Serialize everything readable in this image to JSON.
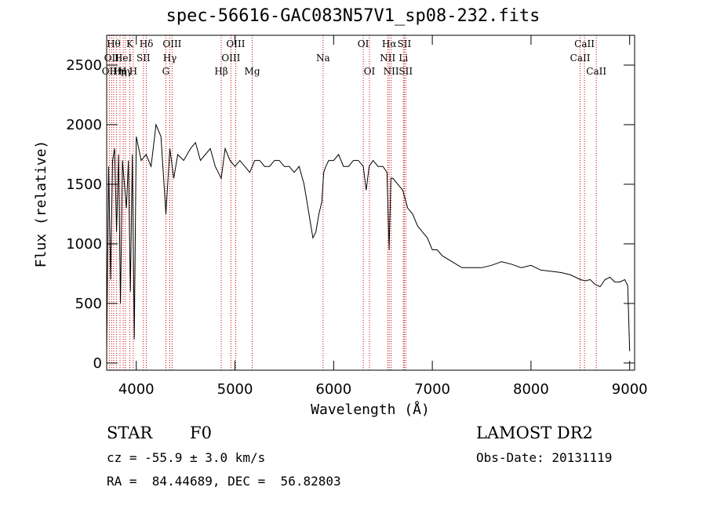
{
  "chart_data": {
    "type": "line",
    "title": "spec-56616-GAC083N57V1_sp08-232.fits",
    "xlabel": "Wavelength (Å)",
    "ylabel": "Flux (relative)",
    "xlim": [
      3700,
      9050
    ],
    "ylim": [
      -60,
      2750
    ],
    "xticks": [
      4000,
      5000,
      6000,
      7000,
      8000,
      9000
    ],
    "yticks": [
      0,
      500,
      1000,
      1500,
      2000,
      2500
    ],
    "series": [
      {
        "x": [
          3700,
          3720,
          3740,
          3760,
          3780,
          3800,
          3820,
          3840,
          3860,
          3880,
          3900,
          3920,
          3940,
          3960,
          3980,
          4000,
          4050,
          4100,
          4150,
          4200,
          4250,
          4300,
          4340,
          4380,
          4420,
          4480,
          4550,
          4600,
          4650,
          4700,
          4750,
          4800,
          4861,
          4900,
          4950,
          5000,
          5050,
          5100,
          5150,
          5200,
          5250,
          5300,
          5350,
          5400,
          5450,
          5500,
          5550,
          5600,
          5650,
          5700,
          5730,
          5760,
          5790,
          5820,
          5850,
          5880,
          5900,
          5920,
          5950,
          6000,
          6050,
          6100,
          6150,
          6200,
          6250,
          6300,
          6330,
          6360,
          6400,
          6450,
          6500,
          6540,
          6563,
          6580,
          6600,
          6650,
          6700,
          6750,
          6800,
          6850,
          6900,
          6950,
          7000,
          7050,
          7100,
          7200,
          7300,
          7400,
          7500,
          7600,
          7700,
          7800,
          7900,
          8000,
          8100,
          8200,
          8300,
          8400,
          8500,
          8550,
          8600,
          8650,
          8700,
          8750,
          8800,
          8850,
          8900,
          8950,
          8980,
          9000
        ],
        "y": [
          100,
          1650,
          700,
          1700,
          1800,
          1100,
          1750,
          500,
          1700,
          1500,
          1300,
          1700,
          600,
          1750,
          200,
          1900,
          1700,
          1750,
          1650,
          2000,
          1900,
          1250,
          1800,
          1550,
          1750,
          1700,
          1800,
          1850,
          1700,
          1750,
          1800,
          1650,
          1550,
          1800,
          1700,
          1650,
          1700,
          1650,
          1600,
          1700,
          1700,
          1650,
          1650,
          1700,
          1700,
          1650,
          1650,
          1600,
          1650,
          1500,
          1350,
          1200,
          1050,
          1100,
          1250,
          1350,
          1600,
          1650,
          1700,
          1700,
          1750,
          1650,
          1650,
          1700,
          1700,
          1650,
          1450,
          1650,
          1700,
          1650,
          1650,
          1600,
          950,
          1550,
          1550,
          1500,
          1450,
          1300,
          1250,
          1150,
          1100,
          1050,
          950,
          950,
          900,
          850,
          800,
          800,
          800,
          820,
          850,
          830,
          800,
          820,
          780,
          770,
          760,
          740,
          700,
          690,
          700,
          660,
          640,
          700,
          720,
          680,
          680,
          700,
          650,
          100
        ]
      }
    ],
    "line_labels": [
      {
        "x": 3727,
        "text": "OII",
        "row": 2
      },
      {
        "x": 3750,
        "text": "OII",
        "row": 1
      },
      {
        "x": 3771,
        "text": "Hθ",
        "row": 0
      },
      {
        "x": 3798,
        "text": "Hη",
        "row": 2
      },
      {
        "x": 3835,
        "text": "Hη",
        "row": 2
      },
      {
        "x": 3868,
        "text": "HeI",
        "row": 1
      },
      {
        "x": 3889,
        "text": "Hγ",
        "row": 2
      },
      {
        "x": 3934,
        "text": "K",
        "row": 0
      },
      {
        "x": 3969,
        "text": "H",
        "row": 2
      },
      {
        "x": 4072,
        "text": "SII",
        "row": 1
      },
      {
        "x": 4102,
        "text": "Hδ",
        "row": 0
      },
      {
        "x": 4300,
        "text": "G",
        "row": 2
      },
      {
        "x": 4340,
        "text": "Hγ",
        "row": 1
      },
      {
        "x": 4363,
        "text": "OIII",
        "row": 0
      },
      {
        "x": 4861,
        "text": "Hβ",
        "row": 2
      },
      {
        "x": 4959,
        "text": "OIII",
        "row": 1
      },
      {
        "x": 5007,
        "text": "OIII",
        "row": 0
      },
      {
        "x": 5175,
        "text": "Mg",
        "row": 2
      },
      {
        "x": 5893,
        "text": "Na",
        "row": 1
      },
      {
        "x": 6300,
        "text": "OI",
        "row": 0
      },
      {
        "x": 6363,
        "text": "OI",
        "row": 2
      },
      {
        "x": 6548,
        "text": "NII",
        "row": 1
      },
      {
        "x": 6563,
        "text": "Hα",
        "row": 0
      },
      {
        "x": 6583,
        "text": "NII",
        "row": 2
      },
      {
        "x": 6707,
        "text": "Li",
        "row": 1
      },
      {
        "x": 6716,
        "text": "SII",
        "row": 0
      },
      {
        "x": 6731,
        "text": "SII",
        "row": 2
      },
      {
        "x": 8498,
        "text": "CaII",
        "row": 1
      },
      {
        "x": 8542,
        "text": "CaII",
        "row": 0
      },
      {
        "x": 8662,
        "text": "CaII",
        "row": 2
      }
    ]
  },
  "info": {
    "object_class": "STAR",
    "subclass": "F0",
    "survey": "LAMOST DR2",
    "redshift": "cz = -55.9 ± 3.0 km/s",
    "obs_date": "Obs-Date: 20131119",
    "coords": "RA =  84.44689, DEC =  56.82803"
  }
}
